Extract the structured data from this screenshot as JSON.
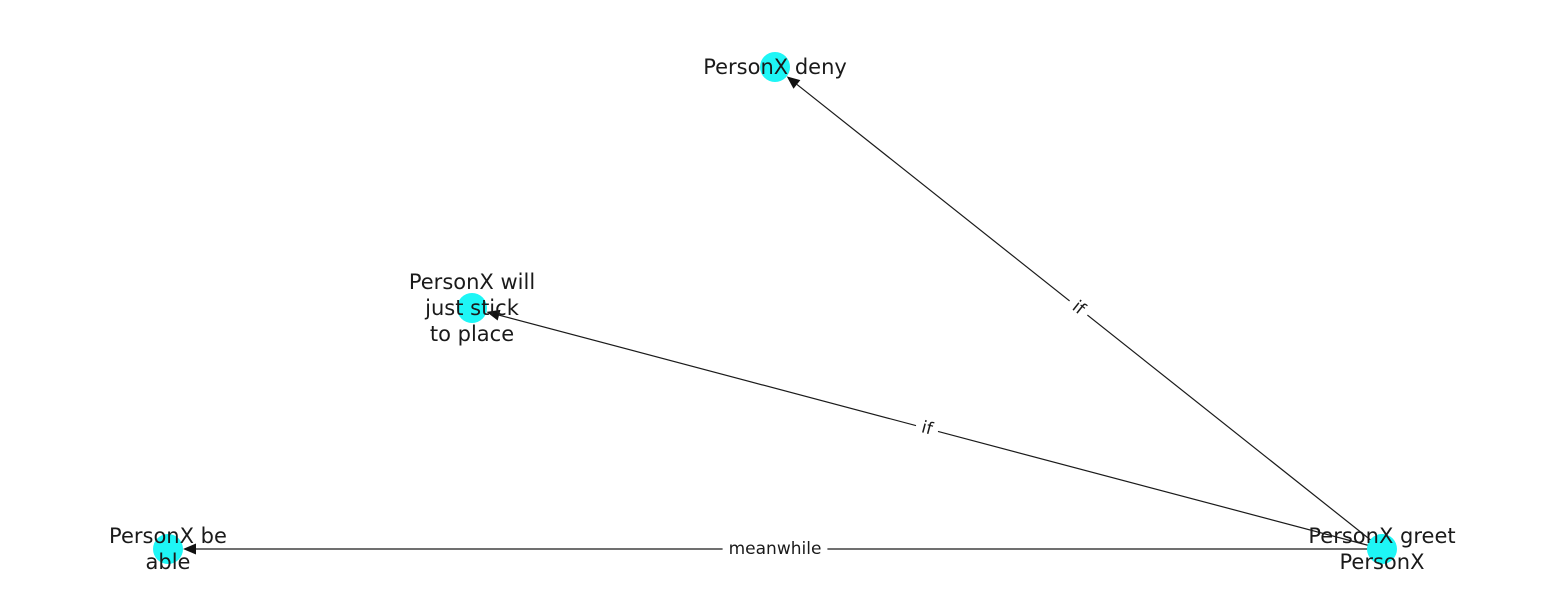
{
  "colors": {
    "node_fill": "#1ef6f6",
    "edge": "#1a1a1a",
    "text": "#1a1a1a",
    "background": "#ffffff"
  },
  "nodes": [
    {
      "id": "greet",
      "label_lines": [
        "PersonX greet",
        "PersonX"
      ]
    },
    {
      "id": "deny",
      "label_lines": [
        "PersonX deny"
      ]
    },
    {
      "id": "stick",
      "label_lines": [
        "PersonX will",
        "just stick",
        "to place"
      ]
    },
    {
      "id": "able",
      "label_lines": [
        "PersonX be",
        "able"
      ]
    }
  ],
  "edges": [
    {
      "from": "greet",
      "to": "deny",
      "label": "if"
    },
    {
      "from": "greet",
      "to": "stick",
      "label": "if"
    },
    {
      "from": "greet",
      "to": "able",
      "label": "meanwhile"
    }
  ]
}
